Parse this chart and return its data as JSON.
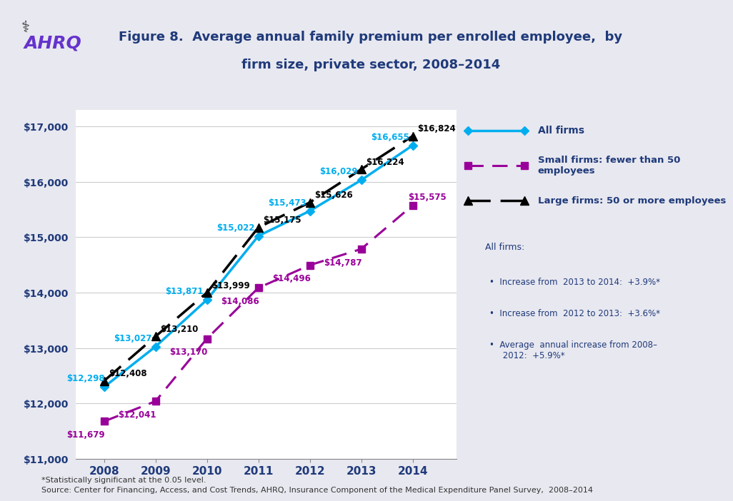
{
  "title_line1": "Figure 8.  Average annual family premium per enrolled employee,  by",
  "title_line2": "firm size, private sector, 2008–2014",
  "years": [
    2008,
    2009,
    2010,
    2011,
    2012,
    2013,
    2014
  ],
  "all_firms": [
    12298,
    13027,
    13871,
    15022,
    15473,
    16029,
    16655
  ],
  "small_firms": [
    11679,
    12041,
    13170,
    14086,
    14496,
    14787,
    15575
  ],
  "large_firms": [
    12408,
    13210,
    13999,
    15175,
    15626,
    16224,
    16824
  ],
  "all_firms_color": "#00AEEF",
  "small_firms_color": "#990099",
  "large_firms_color": "#000000",
  "text_color": "#1F3A7A",
  "ylim": [
    11000,
    17300
  ],
  "yticks": [
    11000,
    12000,
    13000,
    14000,
    15000,
    16000,
    17000
  ],
  "ytick_labels": [
    "$11,000",
    "$12,000",
    "$13,000",
    "$14,000",
    "$15,000",
    "$16,000",
    "$17,000"
  ],
  "legend_all": "All firms",
  "legend_small": "Small firms: fewer than 50 employees",
  "legend_large": "Large firms: 50 or more employees",
  "inset_title": "All firms:",
  "inset_bullet1": "Increase from  2013 to 2014:  +3.9%*",
  "inset_bullet2": "Increase from  2012 to 2013:  +3.6%*",
  "inset_bullet3": "Average  annual increase from 2008–\n     2012:  +5.9%*",
  "note1": "*Statistically significant at the 0.05 level.",
  "note2": "Source: Center for Financing, Access, and Cost Trends, AHRQ, Insurance Component of the Medical Expenditure Panel Survey,  2008–2014",
  "header_bg": "#D8D8E8",
  "bg_color": "#E8E8F0"
}
